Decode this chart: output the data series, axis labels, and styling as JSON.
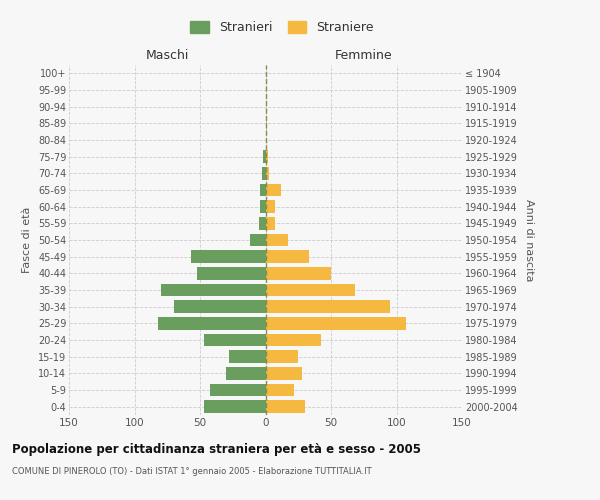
{
  "age_groups": [
    "0-4",
    "5-9",
    "10-14",
    "15-19",
    "20-24",
    "25-29",
    "30-34",
    "35-39",
    "40-44",
    "45-49",
    "50-54",
    "55-59",
    "60-64",
    "65-69",
    "70-74",
    "75-79",
    "80-84",
    "85-89",
    "90-94",
    "95-99",
    "100+"
  ],
  "birth_years": [
    "2000-2004",
    "1995-1999",
    "1990-1994",
    "1985-1989",
    "1980-1984",
    "1975-1979",
    "1970-1974",
    "1965-1969",
    "1960-1964",
    "1955-1959",
    "1950-1954",
    "1945-1949",
    "1940-1944",
    "1935-1939",
    "1930-1934",
    "1925-1929",
    "1920-1924",
    "1915-1919",
    "1910-1914",
    "1905-1909",
    "≤ 1904"
  ],
  "maschi": [
    47,
    42,
    30,
    28,
    47,
    82,
    70,
    80,
    52,
    57,
    12,
    5,
    4,
    4,
    3,
    2,
    0,
    0,
    0,
    0,
    0
  ],
  "femmine": [
    30,
    22,
    28,
    25,
    42,
    107,
    95,
    68,
    50,
    33,
    17,
    7,
    7,
    12,
    3,
    2,
    0,
    1,
    0,
    0,
    0
  ],
  "maschi_color": "#6a9e5e",
  "femmine_color": "#f5b942",
  "dashed_line_color": "#8b8b4e",
  "grid_color": "#cccccc",
  "background_color": "#f7f7f7",
  "title": "Popolazione per cittadinanza straniera per età e sesso - 2005",
  "subtitle": "COMUNE DI PINEROLO (TO) - Dati ISTAT 1° gennaio 2005 - Elaborazione TUTTITALIA.IT",
  "legend_stranieri": "Stranieri",
  "legend_straniere": "Straniere",
  "label_maschi": "Maschi",
  "label_femmine": "Femmine",
  "ylabel_left": "Fasce di età",
  "ylabel_right": "Anni di nascita",
  "xlim": 150
}
